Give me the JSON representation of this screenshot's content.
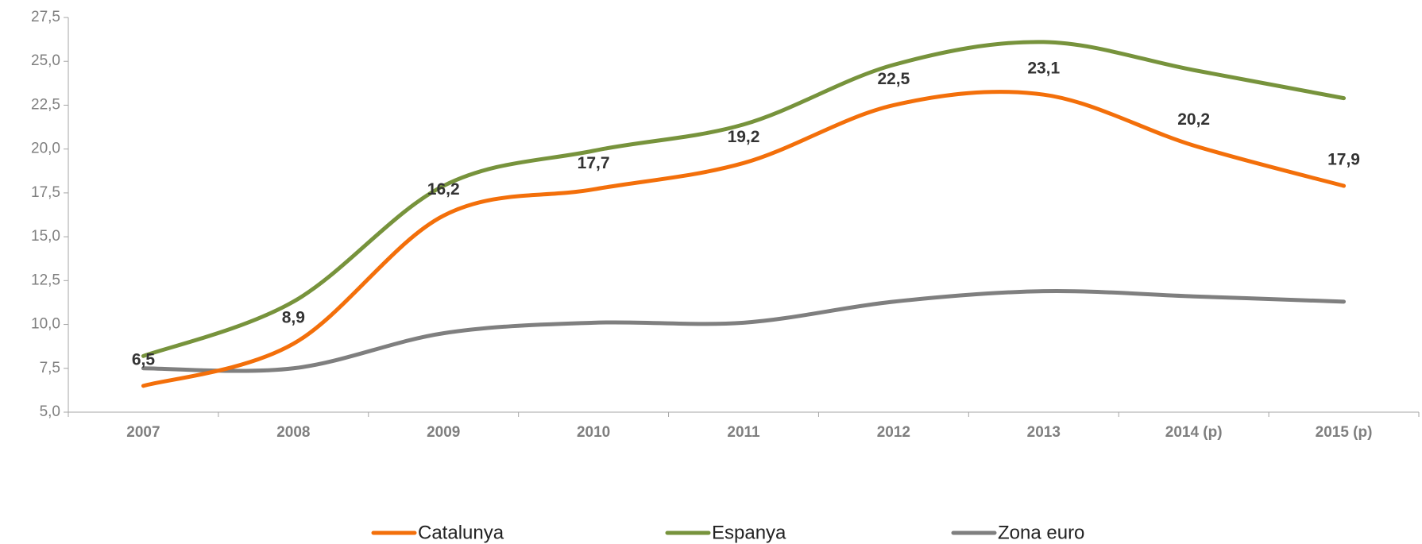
{
  "chart_data": {
    "type": "line",
    "categories": [
      "2007",
      "2008",
      "2009",
      "2010",
      "2011",
      "2012",
      "2013",
      "2014 (p)",
      "2015 (p)"
    ],
    "series": [
      {
        "name": "Catalunya",
        "color": "#f36f0a",
        "values": [
          6.5,
          8.9,
          16.2,
          17.7,
          19.2,
          22.5,
          23.1,
          20.2,
          17.9
        ],
        "value_labels": [
          "6,5",
          "8,9",
          "16,2",
          "17,7",
          "19,2",
          "22,5",
          "23,1",
          "20,2",
          "17,9"
        ]
      },
      {
        "name": "Espanya",
        "color": "#77933c",
        "values": [
          8.2,
          11.3,
          17.9,
          19.9,
          21.4,
          24.8,
          26.1,
          24.5,
          22.9
        ]
      },
      {
        "name": "Zona euro",
        "color": "#7f7f7f",
        "values": [
          7.5,
          7.5,
          9.5,
          10.1,
          10.1,
          11.3,
          11.9,
          11.6,
          11.3
        ]
      }
    ],
    "ylim": [
      5,
      27.5
    ],
    "yticks": [
      {
        "value": 5,
        "label": "5,0"
      },
      {
        "value": 7.5,
        "label": "7,5"
      },
      {
        "value": 10,
        "label": "10,0"
      },
      {
        "value": 12.5,
        "label": "12,5"
      },
      {
        "value": 15,
        "label": "15,0"
      },
      {
        "value": 17.5,
        "label": "17,5"
      },
      {
        "value": 20,
        "label": "20,0"
      },
      {
        "value": 22.5,
        "label": "22,5"
      },
      {
        "value": 25,
        "label": "25,0"
      },
      {
        "value": 27.5,
        "label": "27,5"
      }
    ],
    "legend": "bottom"
  }
}
